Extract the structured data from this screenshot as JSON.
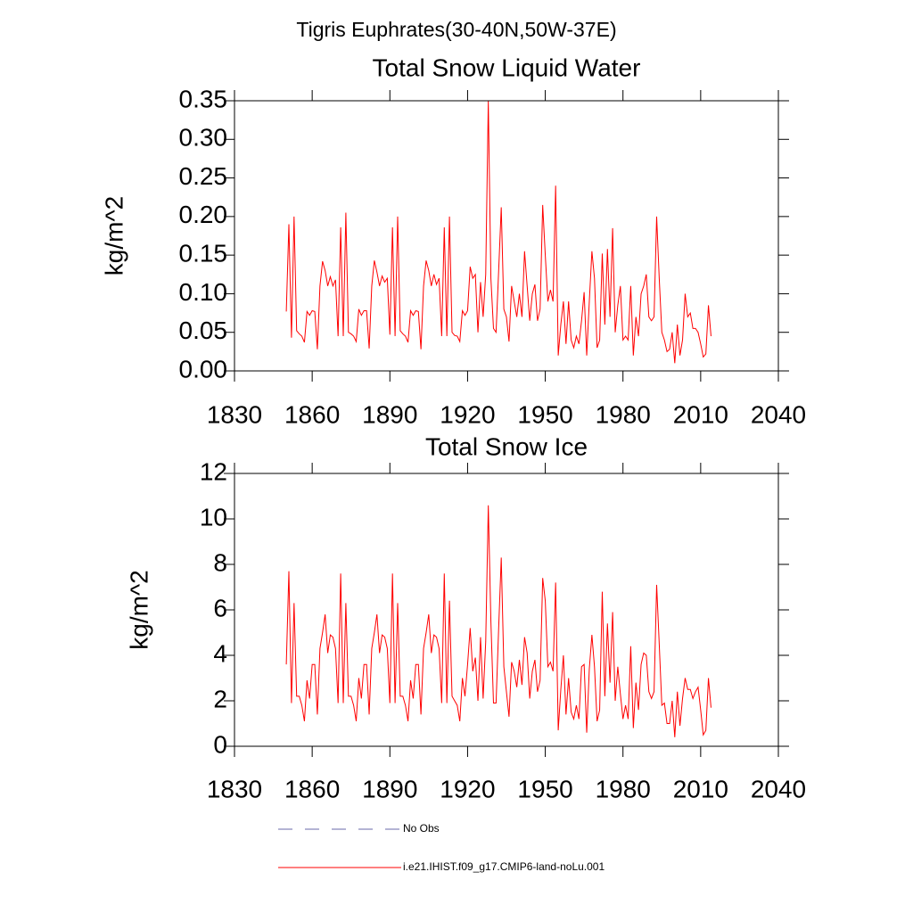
{
  "title": "Tigris Euphrates(30-40N,50W-37E)",
  "legend": [
    {
      "name": "No Obs",
      "color": "#6a6aa8",
      "dashed": true
    },
    {
      "name": "i.e21.IHIST.f09_g17.CMIP6-land-noLu.001",
      "color": "#ff0000",
      "dashed": false
    }
  ],
  "chart_data": [
    {
      "type": "line",
      "title": "Total Snow Liquid Water",
      "y_label": "kg/m^2",
      "xlim": [
        1830,
        2040
      ],
      "xticks": [
        1830,
        1860,
        1890,
        1920,
        1950,
        1980,
        2010,
        2040
      ],
      "ylim": [
        0,
        0.35
      ],
      "yticks": [
        {
          "value": 0,
          "label": "0.00"
        },
        {
          "value": 0.05,
          "label": "0.05"
        },
        {
          "value": 0.1,
          "label": "0.10"
        },
        {
          "value": 0.15,
          "label": "0.15"
        },
        {
          "value": 0.2,
          "label": "0.20"
        },
        {
          "value": 0.25,
          "label": "0.25"
        },
        {
          "value": 0.3,
          "label": "0.30"
        },
        {
          "value": 0.35,
          "label": "0.35"
        }
      ],
      "x": [
        1850,
        1851,
        1852,
        1853,
        1854,
        1855,
        1856,
        1857,
        1858,
        1859,
        1860,
        1861,
        1862,
        1863,
        1864,
        1865,
        1866,
        1867,
        1868,
        1869,
        1870,
        1871,
        1872,
        1873,
        1874,
        1875,
        1876,
        1877,
        1878,
        1879,
        1880,
        1881,
        1882,
        1883,
        1884,
        1885,
        1886,
        1887,
        1888,
        1889,
        1890,
        1891,
        1892,
        1893,
        1894,
        1895,
        1896,
        1897,
        1898,
        1899,
        1900,
        1901,
        1902,
        1903,
        1904,
        1905,
        1906,
        1907,
        1908,
        1909,
        1910,
        1911,
        1912,
        1913,
        1914,
        1915,
        1916,
        1917,
        1918,
        1919,
        1920,
        1921,
        1922,
        1923,
        1924,
        1925,
        1926,
        1927,
        1928,
        1929,
        1930,
        1931,
        1932,
        1933,
        1934,
        1935,
        1936,
        1937,
        1938,
        1939,
        1940,
        1941,
        1942,
        1943,
        1944,
        1945,
        1946,
        1947,
        1948,
        1949,
        1950,
        1951,
        1952,
        1953,
        1954,
        1955,
        1956,
        1957,
        1958,
        1959,
        1960,
        1961,
        1962,
        1963,
        1964,
        1965,
        1966,
        1967,
        1968,
        1969,
        1970,
        1971,
        1972,
        1973,
        1974,
        1975,
        1976,
        1977,
        1978,
        1979,
        1980,
        1981,
        1982,
        1983,
        1984,
        1985,
        1986,
        1987,
        1988,
        1989,
        1990,
        1991,
        1992,
        1993,
        1994,
        1995,
        1996,
        1997,
        1998,
        1999,
        2000,
        2001,
        2002,
        2003,
        2004,
        2005,
        2006,
        2007,
        2008,
        2009,
        2010,
        2011,
        2012,
        2013,
        2014
      ],
      "series": [
        {
          "name": "i.e21.IHIST.f09_g17.CMIP6-land-noLu.001",
          "color": "#ff0000",
          "values": [
            0.077,
            0.19,
            0.043,
            0.2,
            0.052,
            0.048,
            0.045,
            0.037,
            0.077,
            0.072,
            0.078,
            0.077,
            0.028,
            0.11,
            0.142,
            0.13,
            0.11,
            0.122,
            0.11,
            0.118,
            0.045,
            0.186,
            0.045,
            0.205,
            0.05,
            0.048,
            0.045,
            0.038,
            0.08,
            0.072,
            0.078,
            0.078,
            0.029,
            0.11,
            0.143,
            0.128,
            0.11,
            0.123,
            0.115,
            0.12,
            0.047,
            0.186,
            0.045,
            0.2,
            0.052,
            0.048,
            0.045,
            0.037,
            0.078,
            0.072,
            0.078,
            0.077,
            0.028,
            0.11,
            0.143,
            0.13,
            0.11,
            0.125,
            0.112,
            0.12,
            0.045,
            0.186,
            0.045,
            0.2,
            0.05,
            0.046,
            0.045,
            0.038,
            0.078,
            0.072,
            0.078,
            0.135,
            0.12,
            0.125,
            0.05,
            0.115,
            0.07,
            0.125,
            0.35,
            0.12,
            0.055,
            0.05,
            0.13,
            0.212,
            0.08,
            0.07,
            0.038,
            0.11,
            0.09,
            0.07,
            0.1,
            0.07,
            0.155,
            0.11,
            0.065,
            0.1,
            0.112,
            0.065,
            0.08,
            0.215,
            0.15,
            0.09,
            0.105,
            0.09,
            0.24,
            0.02,
            0.06,
            0.09,
            0.035,
            0.09,
            0.04,
            0.03,
            0.045,
            0.035,
            0.065,
            0.102,
            0.02,
            0.09,
            0.155,
            0.12,
            0.03,
            0.04,
            0.152,
            0.06,
            0.158,
            0.07,
            0.185,
            0.05,
            0.085,
            0.11,
            0.04,
            0.045,
            0.04,
            0.11,
            0.02,
            0.07,
            0.045,
            0.1,
            0.11,
            0.125,
            0.07,
            0.065,
            0.07,
            0.2,
            0.12,
            0.05,
            0.04,
            0.025,
            0.028,
            0.05,
            0.01,
            0.06,
            0.02,
            0.04,
            0.1,
            0.07,
            0.075,
            0.055,
            0.055,
            0.05,
            0.035,
            0.018,
            0.022,
            0.085,
            0.045
          ]
        }
      ]
    },
    {
      "type": "line",
      "title": "Total Snow Ice",
      "y_label": "kg/m^2",
      "xlim": [
        1830,
        2040
      ],
      "xticks": [
        1830,
        1860,
        1890,
        1920,
        1950,
        1980,
        2010,
        2040
      ],
      "ylim": [
        0,
        12
      ],
      "yticks": [
        0,
        2,
        4,
        6,
        8,
        10,
        12
      ],
      "x": [
        1850,
        1851,
        1852,
        1853,
        1854,
        1855,
        1856,
        1857,
        1858,
        1859,
        1860,
        1861,
        1862,
        1863,
        1864,
        1865,
        1866,
        1867,
        1868,
        1869,
        1870,
        1871,
        1872,
        1873,
        1874,
        1875,
        1876,
        1877,
        1878,
        1879,
        1880,
        1881,
        1882,
        1883,
        1884,
        1885,
        1886,
        1887,
        1888,
        1889,
        1890,
        1891,
        1892,
        1893,
        1894,
        1895,
        1896,
        1897,
        1898,
        1899,
        1900,
        1901,
        1902,
        1903,
        1904,
        1905,
        1906,
        1907,
        1908,
        1909,
        1910,
        1911,
        1912,
        1913,
        1914,
        1915,
        1916,
        1917,
        1918,
        1919,
        1920,
        1921,
        1922,
        1923,
        1924,
        1925,
        1926,
        1927,
        1928,
        1929,
        1930,
        1931,
        1932,
        1933,
        1934,
        1935,
        1936,
        1937,
        1938,
        1939,
        1940,
        1941,
        1942,
        1943,
        1944,
        1945,
        1946,
        1947,
        1948,
        1949,
        1950,
        1951,
        1952,
        1953,
        1954,
        1955,
        1956,
        1957,
        1958,
        1959,
        1960,
        1961,
        1962,
        1963,
        1964,
        1965,
        1966,
        1967,
        1968,
        1969,
        1970,
        1971,
        1972,
        1973,
        1974,
        1975,
        1976,
        1977,
        1978,
        1979,
        1980,
        1981,
        1982,
        1983,
        1984,
        1985,
        1986,
        1987,
        1988,
        1989,
        1990,
        1991,
        1992,
        1993,
        1994,
        1995,
        1996,
        1997,
        1998,
        1999,
        2000,
        2001,
        2002,
        2003,
        2004,
        2005,
        2006,
        2007,
        2008,
        2009,
        2010,
        2011,
        2012,
        2013,
        2014
      ],
      "series": [
        {
          "name": "i.e21.IHIST.f09_g17.CMIP6-land-noLu.001",
          "color": "#ff0000",
          "values": [
            3.6,
            7.7,
            1.9,
            6.3,
            2.2,
            2.2,
            1.8,
            1.1,
            2.9,
            2.1,
            3.6,
            3.6,
            1.4,
            4.3,
            5.0,
            5.8,
            4.1,
            4.9,
            4.8,
            4.3,
            1.9,
            7.6,
            1.9,
            6.3,
            2.2,
            2.2,
            1.8,
            1.1,
            3.0,
            2.1,
            3.6,
            3.6,
            1.4,
            4.3,
            5.0,
            5.8,
            4.1,
            4.9,
            4.8,
            4.3,
            1.9,
            7.6,
            1.9,
            6.3,
            2.2,
            2.2,
            1.8,
            1.1,
            2.9,
            2.1,
            3.6,
            3.6,
            1.4,
            4.3,
            5.0,
            5.8,
            4.1,
            4.9,
            4.8,
            4.3,
            1.9,
            7.6,
            1.9,
            6.4,
            2.2,
            2.0,
            1.8,
            1.1,
            3.0,
            2.2,
            3.6,
            5.2,
            3.3,
            3.9,
            2.0,
            4.8,
            2.1,
            4.6,
            10.6,
            5.5,
            1.9,
            1.9,
            5.2,
            8.3,
            3.5,
            2.4,
            1.3,
            3.7,
            3.3,
            2.6,
            3.8,
            2.7,
            4.8,
            4.1,
            2.1,
            3.3,
            3.8,
            2.4,
            2.9,
            7.4,
            6.4,
            3.5,
            3.7,
            3.3,
            7.2,
            0.7,
            2.5,
            4.0,
            1.4,
            3.0,
            1.5,
            1.2,
            1.8,
            1.2,
            3.5,
            3.6,
            0.6,
            3.4,
            4.9,
            3.5,
            1.1,
            1.6,
            6.8,
            2.2,
            5.4,
            2.8,
            5.9,
            2.0,
            3.5,
            2.3,
            1.2,
            1.8,
            1.2,
            4.4,
            0.8,
            2.8,
            1.6,
            3.6,
            4.1,
            4.0,
            2.4,
            2.1,
            2.4,
            7.1,
            4.5,
            1.8,
            1.9,
            1.0,
            1.0,
            2.0,
            0.4,
            2.4,
            0.9,
            2.1,
            3.0,
            2.5,
            2.5,
            2.1,
            2.4,
            2.6,
            1.6,
            0.5,
            0.7,
            3.0,
            1.7
          ]
        }
      ]
    }
  ]
}
